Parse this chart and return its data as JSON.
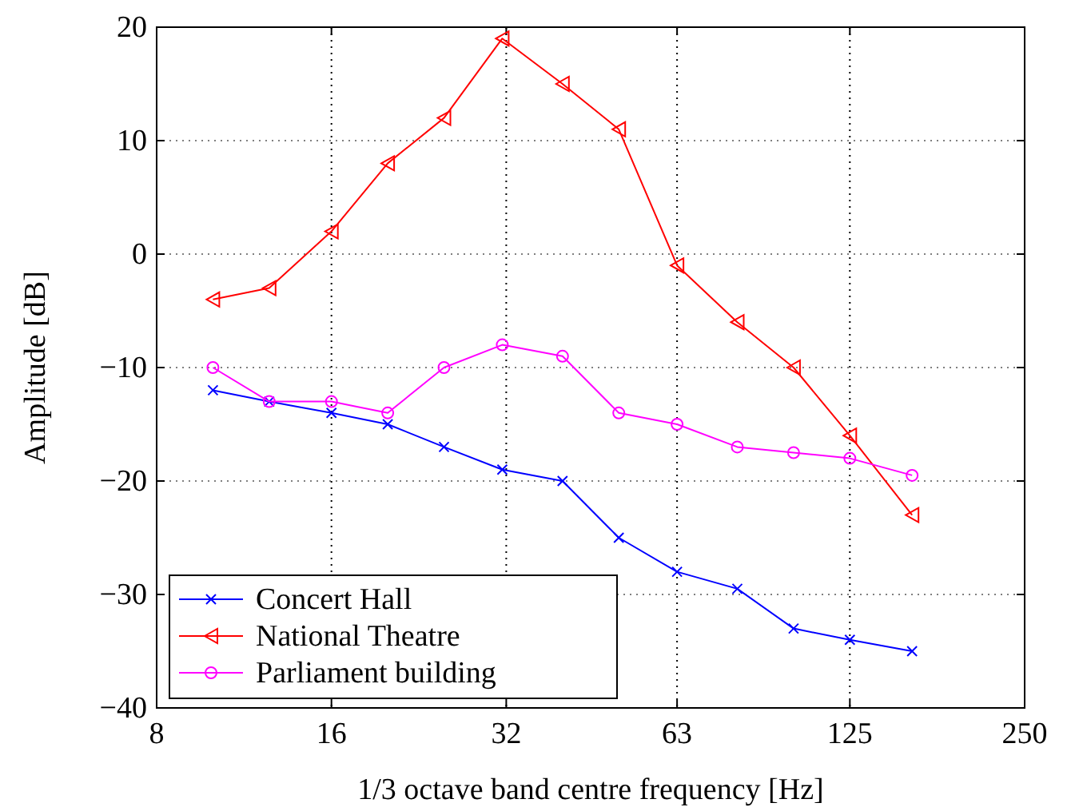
{
  "chart_data": {
    "type": "line",
    "xlabel": "1/3 octave band centre frequency [Hz]",
    "ylabel": "Amplitude [dB]",
    "x": [
      10,
      12.5,
      16,
      20,
      25,
      31.5,
      40,
      50,
      63,
      80,
      100,
      125,
      160
    ],
    "xlim": [
      8,
      250
    ],
    "xticks": [
      8,
      16,
      32,
      63,
      125,
      250
    ],
    "log": "x",
    "ylim": [
      -40,
      20
    ],
    "yticks": [
      -40,
      -30,
      -20,
      -10,
      0,
      10,
      20
    ],
    "grid": true,
    "legend": "bottom left",
    "line_style": "solid",
    "series": [
      {
        "name": "Concert Hall",
        "color": "#0000ff",
        "marker": "cross",
        "values": [
          -12,
          -13,
          -14,
          -15,
          -17,
          -19,
          -20,
          -25,
          -28,
          -29.5,
          -33,
          -34,
          -35
        ]
      },
      {
        "name": "National Theatre",
        "color": "#ff0000",
        "marker": "triangle",
        "values": [
          -4,
          -3,
          2,
          8,
          12,
          19,
          15,
          11,
          -1,
          -6,
          -10,
          -16,
          -23
        ]
      },
      {
        "name": "Parliament building",
        "color": "#ff00ff",
        "marker": "circle",
        "values": [
          -10,
          -13,
          -13,
          -14,
          -10,
          -8,
          -9,
          -14,
          -15,
          -17,
          -17.5,
          -18,
          -19.5
        ]
      }
    ]
  }
}
